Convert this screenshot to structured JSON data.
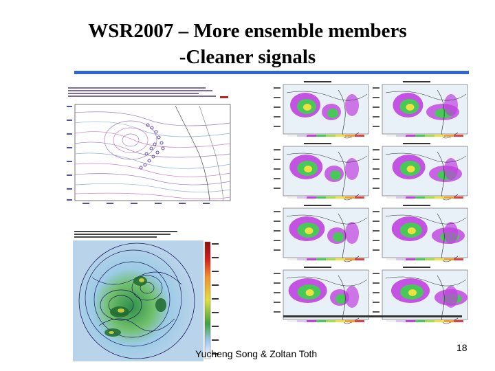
{
  "slide": {
    "title_line1": "WSR2007 – More ensemble members",
    "title_line2": "-Cleaner signals",
    "footer": "Yucheng Song & Zoltan Toth",
    "page_number": "18"
  },
  "colors": {
    "title_rule": "#3366cc",
    "map_ocean": "#b9d3ea",
    "signal_purple": "#c040e0",
    "signal_green": "#48c858",
    "signal_yellow": "#f0e040"
  },
  "figures": {
    "top_left_map": "contour map with sensitivity circles",
    "bottom_left_map": "polar ensemble spread map",
    "right_grid": "signal variance panels",
    "right_grid_rows": 4,
    "right_grid_cols": 2
  }
}
